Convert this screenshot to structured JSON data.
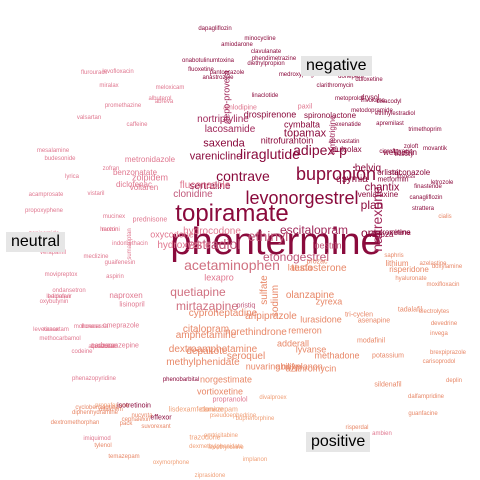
{
  "groups": {
    "negative": "negative",
    "neutral": "neutral",
    "positive": "positive"
  },
  "colors": {
    "negative_strong": "#8a0a3c",
    "negative_mid": "#a0285a",
    "neutral_strong": "#c0587a",
    "neutral_light": "#e07890",
    "positive_mid": "#e88868",
    "positive_light": "#f0a078"
  },
  "words": [
    {
      "t": "phentermine",
      "s": 38,
      "c": "#8a0a3c"
    },
    {
      "t": "topiramate",
      "s": 24,
      "c": "#8a0a3c"
    },
    {
      "t": "bupropion",
      "s": 18,
      "c": "#8a0a3c"
    },
    {
      "t": "levonorgestrel",
      "s": 18,
      "c": "#8a0a3c"
    },
    {
      "t": "contrave",
      "s": 14,
      "c": "#8a0a3c"
    },
    {
      "t": "liraglutide",
      "s": 14,
      "c": "#8a0a3c"
    },
    {
      "t": "adipex-p",
      "s": 14,
      "c": "#8a0a3c"
    },
    {
      "t": "ethinyl",
      "s": 14,
      "c": "#c0587a"
    },
    {
      "t": "estradiol",
      "s": 14,
      "c": "#c0587a"
    },
    {
      "t": "acetaminophen",
      "s": 14,
      "c": "#d07080"
    },
    {
      "t": "naltrexone",
      "s": 14,
      "c": "#a0285a",
      "v": true
    },
    {
      "t": "etonogestrel",
      "s": 12,
      "c": "#c0587a"
    },
    {
      "t": "quetiapine",
      "s": 12,
      "c": "#d07080"
    },
    {
      "t": "mirtazapine",
      "s": 12,
      "c": "#d07080"
    },
    {
      "t": "escitalopram",
      "s": 12,
      "c": "#a0285a"
    },
    {
      "t": "plan",
      "s": 12,
      "c": "#8a0a3c"
    },
    {
      "t": "one",
      "s": 12,
      "c": "#8a0a3c"
    },
    {
      "t": "varenicline",
      "s": 11,
      "c": "#8a0a3c"
    },
    {
      "t": "saxenda",
      "s": 11,
      "c": "#8a0a3c"
    },
    {
      "t": "chantix",
      "s": 11,
      "c": "#8a0a3c"
    },
    {
      "t": "topamax",
      "s": 11,
      "c": "#8a0a3c"
    },
    {
      "t": "belviq",
      "s": 10,
      "c": "#8a0a3c"
    },
    {
      "t": "qsymia",
      "s": 10,
      "c": "#8a0a3c"
    },
    {
      "t": "nortriptyline",
      "s": 10,
      "c": "#a0285a"
    },
    {
      "t": "lacosamide",
      "s": 10,
      "c": "#a0285a"
    },
    {
      "t": "hydrocodone",
      "s": 10,
      "c": "#e07890"
    },
    {
      "t": "sertraline",
      "s": 10,
      "c": "#8a0a3c"
    },
    {
      "t": "fluconazole",
      "s": 10,
      "c": "#e07890"
    },
    {
      "t": "clonidine",
      "s": 10,
      "c": "#c0587a"
    },
    {
      "t": "oxycodone",
      "s": 9,
      "c": "#e07890"
    },
    {
      "t": "hydroxyzine",
      "s": 10,
      "c": "#e07890"
    },
    {
      "t": "cyproheptadine",
      "s": 10,
      "c": "#e88868"
    },
    {
      "t": "citalopram",
      "s": 10,
      "c": "#e88868"
    },
    {
      "t": "aripiprazole",
      "s": 10,
      "c": "#e88868"
    },
    {
      "t": "amphetamine",
      "s": 10,
      "c": "#e88868"
    },
    {
      "t": "dextroamphetamine",
      "s": 10,
      "c": "#e88868"
    },
    {
      "t": "methylphenidate",
      "s": 10,
      "c": "#e88868"
    },
    {
      "t": "norgestimate",
      "s": 9,
      "c": "#e88868"
    },
    {
      "t": "norethindrone",
      "s": 10,
      "c": "#e88868"
    },
    {
      "t": "depakote",
      "s": 10,
      "c": "#e88868"
    },
    {
      "t": "seroquel",
      "s": 10,
      "c": "#e88868"
    },
    {
      "t": "loestrin",
      "s": 9,
      "c": "#c0587a"
    },
    {
      "t": "testosterone",
      "s": 10,
      "c": "#e88868"
    },
    {
      "t": "olanzapine",
      "s": 10,
      "c": "#e88868"
    },
    {
      "t": "lurasidone",
      "s": 9,
      "c": "#e88868"
    },
    {
      "t": "remeron",
      "s": 9,
      "c": "#e88868"
    },
    {
      "t": "lyvanse",
      "s": 9,
      "c": "#e88868"
    },
    {
      "t": "vortioxetine",
      "s": 9,
      "c": "#e88868"
    },
    {
      "t": "lexapro",
      "s": 9,
      "c": "#e07890"
    },
    {
      "t": "sulfate",
      "s": 10,
      "c": "#e88868",
      "v": true
    },
    {
      "t": "sodium",
      "s": 10,
      "c": "#e88868",
      "v": true
    },
    {
      "t": "latuda",
      "s": 9,
      "c": "#e88868"
    },
    {
      "t": "zyrexa",
      "s": 9,
      "c": "#e88868"
    },
    {
      "t": "abilify",
      "s": 9,
      "c": "#e88868"
    },
    {
      "t": "adderall",
      "s": 9,
      "c": "#e88868"
    },
    {
      "t": "methadone",
      "s": 9,
      "c": "#e88868"
    },
    {
      "t": "azithromycin",
      "s": 9,
      "c": "#e88868"
    },
    {
      "t": "nexplanon",
      "s": 9,
      "c": "#e88868"
    },
    {
      "t": "nuvaring",
      "s": 9,
      "c": "#e88868"
    },
    {
      "t": "zolpidem",
      "s": 9,
      "c": "#e07890"
    },
    {
      "t": "metronidazole",
      "s": 8,
      "c": "#e07890"
    },
    {
      "t": "benzonatate",
      "s": 8,
      "c": "#e07890"
    },
    {
      "t": "diclofenac",
      "s": 8,
      "c": "#e07890"
    },
    {
      "t": "voltaren",
      "s": 8,
      "c": "#e07890"
    },
    {
      "t": "naproxen",
      "s": 8,
      "c": "#e07890"
    },
    {
      "t": "amlodipine",
      "s": 7,
      "c": "#e07890"
    },
    {
      "t": "drospirenone",
      "s": 9,
      "c": "#8a0a3c"
    },
    {
      "t": "cymbalta",
      "s": 9,
      "c": "#8a0a3c"
    },
    {
      "t": "nitrofurantoin",
      "s": 9,
      "c": "#8a0a3c"
    },
    {
      "t": "dulcolax",
      "s": 8,
      "c": "#8a0a3c"
    },
    {
      "t": "orlistat",
      "s": 8,
      "c": "#8a0a3c"
    },
    {
      "t": "miconazole",
      "s": 8,
      "c": "#8a0a3c"
    },
    {
      "t": "wellbutrin",
      "s": 8,
      "c": "#8a0a3c"
    },
    {
      "t": "metformin",
      "s": 7,
      "c": "#8a0a3c"
    },
    {
      "t": "venlafaxine",
      "s": 8,
      "c": "#8a0a3c"
    },
    {
      "t": "victoza",
      "s": 8,
      "c": "#8a0a3c"
    },
    {
      "t": "depo-provera",
      "s": 9,
      "c": "#a0285a",
      "v": true
    },
    {
      "t": "spironolactone",
      "s": 8,
      "c": "#8a0a3c"
    },
    {
      "t": "paroxetine",
      "s": 8,
      "c": "#8a0a3c"
    },
    {
      "t": "lamotrigine",
      "s": 8,
      "c": "#a0285a",
      "v": true
    },
    {
      "t": "mirena",
      "s": 7,
      "c": "#8a0a3c"
    },
    {
      "t": "lithium",
      "s": 8,
      "c": "#e88868"
    },
    {
      "t": "risperidone",
      "s": 8,
      "c": "#e88868"
    },
    {
      "t": "tadalafil",
      "s": 7,
      "c": "#e88868"
    },
    {
      "t": "modafinil",
      "s": 7,
      "c": "#e88868"
    },
    {
      "t": "potassium",
      "s": 7,
      "c": "#e88868"
    },
    {
      "t": "sildenafil",
      "s": 7,
      "c": "#e88868"
    },
    {
      "t": "asenapine",
      "s": 7,
      "c": "#e88868"
    },
    {
      "t": "tri-cyclen",
      "s": 7,
      "c": "#e88868"
    },
    {
      "t": "prozac",
      "s": 7,
      "c": "#e88868"
    },
    {
      "t": "pristiq",
      "s": 7,
      "c": "#c0587a"
    },
    {
      "t": "paxil",
      "s": 7,
      "c": "#e07890"
    },
    {
      "t": "drysol",
      "s": 7,
      "c": "#8a0a3c"
    },
    {
      "t": "prednisone",
      "s": 7,
      "c": "#e07890"
    },
    {
      "t": "lisinopril",
      "s": 7,
      "c": "#e07890"
    },
    {
      "t": "omeprazole",
      "s": 7,
      "c": "#e07890"
    },
    {
      "t": "carbamazepine",
      "s": 7,
      "c": "#e07890"
    },
    {
      "t": "propranolol",
      "s": 7,
      "c": "#e07890"
    },
    {
      "t": "clonazepam",
      "s": 7,
      "c": "#f0a078"
    },
    {
      "t": "trazodone",
      "s": 7,
      "c": "#f0a078"
    },
    {
      "t": "lisdexamfetamine",
      "s": 7,
      "c": "#f0a078"
    },
    {
      "t": "levothyroxine",
      "s": 6,
      "c": "#f0a078"
    },
    {
      "t": "divalproex",
      "s": 6,
      "c": "#f0a078"
    },
    {
      "t": "oxymorphone",
      "s": 6,
      "c": "#f0a078"
    },
    {
      "t": "buprenorphine",
      "s": 6,
      "c": "#f0a078"
    },
    {
      "t": "ziprasidone",
      "s": 6,
      "c": "#f0a078"
    },
    {
      "t": "implanon",
      "s": 6,
      "c": "#f0a078"
    },
    {
      "t": "dexmethylphenidate",
      "s": 6,
      "c": "#f0a078"
    },
    {
      "t": "pseudoephedrine",
      "s": 6,
      "c": "#f0a078"
    },
    {
      "t": "emtricitabine",
      "s": 6,
      "c": "#f0a078"
    },
    {
      "t": "propafenone",
      "s": 6,
      "c": "#f0a078"
    },
    {
      "t": "diphenhydramine",
      "s": 6,
      "c": "#e88868"
    },
    {
      "t": "dextromethorphan",
      "s": 6,
      "c": "#e88868"
    },
    {
      "t": "cyclobenzaprine",
      "s": 6,
      "c": "#e88868"
    },
    {
      "t": "phenazopyridine",
      "s": 6,
      "c": "#e07890"
    },
    {
      "t": "imiquimod",
      "s": 6,
      "c": "#e07890"
    },
    {
      "t": "tylenol",
      "s": 6,
      "c": "#e88868"
    },
    {
      "t": "temazepam",
      "s": 6,
      "c": "#e88868"
    },
    {
      "t": "ditiiazem",
      "s": 6,
      "c": "#e88868"
    },
    {
      "t": "nucynta",
      "s": 6,
      "c": "#e88868"
    },
    {
      "t": "cephalexin",
      "s": 6,
      "c": "#e88868"
    },
    {
      "t": "pack",
      "s": 6,
      "c": "#e88868"
    },
    {
      "t": "suvorexant",
      "s": 6,
      "c": "#e88868"
    },
    {
      "t": "isotretinoin",
      "s": 7,
      "c": "#8a0a3c"
    },
    {
      "t": "effexor",
      "s": 7,
      "c": "#8a0a3c"
    },
    {
      "t": "phenobarbital",
      "s": 6,
      "c": "#8a0a3c"
    },
    {
      "t": "ciprofloxacin",
      "s": 6,
      "c": "#8a0a3c"
    },
    {
      "t": "trulicity",
      "s": 6,
      "c": "#8a0a3c"
    },
    {
      "t": "invokana",
      "s": 6,
      "c": "#8a0a3c"
    },
    {
      "t": "fluoxetine",
      "s": 6,
      "c": "#8a0a3c"
    },
    {
      "t": "anastrozole",
      "s": 6,
      "c": "#8a0a3c"
    },
    {
      "t": "onabotulinumtoxina",
      "s": 6,
      "c": "#8a0a3c"
    },
    {
      "t": "pantoprazole",
      "s": 6,
      "c": "#8a0a3c"
    },
    {
      "t": "amiodarone",
      "s": 6,
      "c": "#8a0a3c"
    },
    {
      "t": "dapagliflozin",
      "s": 6,
      "c": "#8a0a3c"
    },
    {
      "t": "minocycline",
      "s": 6,
      "c": "#8a0a3c"
    },
    {
      "t": "clavulanate",
      "s": 6,
      "c": "#8a0a3c"
    },
    {
      "t": "diethylpropion",
      "s": 6,
      "c": "#8a0a3c"
    },
    {
      "t": "phendimetrazine",
      "s": 6,
      "c": "#8a0a3c"
    },
    {
      "t": "medroxyprogesterone",
      "s": 6,
      "c": "#8a0a3c"
    },
    {
      "t": "clarithromycin",
      "s": 6,
      "c": "#8a0a3c"
    },
    {
      "t": "linaclotide",
      "s": 6,
      "c": "#8a0a3c"
    },
    {
      "t": "donepezil",
      "s": 6,
      "c": "#8a0a3c"
    },
    {
      "t": "duloxetine",
      "s": 6,
      "c": "#8a0a3c"
    },
    {
      "t": "prolia",
      "s": 6,
      "c": "#8a0a3c"
    },
    {
      "t": "metoprolol",
      "s": 6,
      "c": "#8a0a3c"
    },
    {
      "t": "exenatide",
      "s": 6,
      "c": "#8a0a3c"
    },
    {
      "t": "apremilast",
      "s": 6,
      "c": "#8a0a3c"
    },
    {
      "t": "trimethoprim",
      "s": 6,
      "c": "#8a0a3c"
    },
    {
      "t": "bisacodyl",
      "s": 6,
      "c": "#8a0a3c"
    },
    {
      "t": "ethinylestradiol",
      "s": 6,
      "c": "#8a0a3c"
    },
    {
      "t": "metodopramide",
      "s": 6,
      "c": "#8a0a3c"
    },
    {
      "t": "atorvastatin",
      "s": 6,
      "c": "#8a0a3c"
    },
    {
      "t": "zoloft",
      "s": 6,
      "c": "#8a0a3c"
    },
    {
      "t": "movantik",
      "s": 6,
      "c": "#8a0a3c"
    },
    {
      "t": "linzess",
      "s": 6,
      "c": "#8a0a3c"
    },
    {
      "t": "finasteride",
      "s": 6,
      "c": "#8a0a3c"
    },
    {
      "t": "canagliflozin",
      "s": 6,
      "c": "#8a0a3c"
    },
    {
      "t": "letrozole",
      "s": 6,
      "c": "#8a0a3c"
    },
    {
      "t": "strattera",
      "s": 6,
      "c": "#8a0a3c"
    },
    {
      "t": "cialis",
      "s": 6,
      "c": "#e88868"
    },
    {
      "t": "saphris",
      "s": 6,
      "c": "#e88868"
    },
    {
      "t": "azelastine",
      "s": 6,
      "c": "#e88868"
    },
    {
      "t": "doxylamine",
      "s": 6,
      "c": "#e88868"
    },
    {
      "t": "hyaluronate",
      "s": 6,
      "c": "#e88868"
    },
    {
      "t": "moxifloxacin",
      "s": 6,
      "c": "#e88868"
    },
    {
      "t": "electrolytes",
      "s": 6,
      "c": "#e88868"
    },
    {
      "t": "devedrine",
      "s": 6,
      "c": "#e88868"
    },
    {
      "t": "invega",
      "s": 6,
      "c": "#e88868"
    },
    {
      "t": "brexpiprazole",
      "s": 6,
      "c": "#e88868"
    },
    {
      "t": "carisoprodol",
      "s": 6,
      "c": "#e88868"
    },
    {
      "t": "deplin",
      "s": 6,
      "c": "#e88868"
    },
    {
      "t": "dalfampridine",
      "s": 6,
      "c": "#e88868"
    },
    {
      "t": "guanfacine",
      "s": 6,
      "c": "#e88868"
    },
    {
      "t": "risperdal",
      "s": 6,
      "c": "#e88868"
    },
    {
      "t": "doxepin",
      "s": 6,
      "c": "#e88868"
    },
    {
      "t": "ambien",
      "s": 6,
      "c": "#e07890"
    },
    {
      "t": "acamprosate",
      "s": 6,
      "c": "#e07890"
    },
    {
      "t": "propoxyphene",
      "s": 6,
      "c": "#e07890"
    },
    {
      "t": "zonisamide",
      "s": 6,
      "c": "#e07890"
    },
    {
      "t": "verapamil",
      "s": 6,
      "c": "#e07890"
    },
    {
      "t": "movipreptox",
      "s": 6,
      "c": "#e07890"
    },
    {
      "t": "ondansetron",
      "s": 6,
      "c": "#e07890"
    },
    {
      "t": "oxybutynin",
      "s": 6,
      "c": "#e07890"
    },
    {
      "t": "methocarbamol",
      "s": 6,
      "c": "#e07890"
    },
    {
      "t": "budesonide",
      "s": 6,
      "c": "#e07890"
    },
    {
      "t": "mesalamine",
      "s": 6,
      "c": "#e07890"
    },
    {
      "t": "flurouracil",
      "s": 6,
      "c": "#e07890"
    },
    {
      "t": "miralax",
      "s": 6,
      "c": "#e07890"
    },
    {
      "t": "levofloxacin",
      "s": 6,
      "c": "#e07890"
    },
    {
      "t": "promethazine",
      "s": 6,
      "c": "#e07890"
    },
    {
      "t": "albuterol",
      "s": 6,
      "c": "#e07890"
    },
    {
      "t": "meloxicam",
      "s": 6,
      "c": "#e07890"
    },
    {
      "t": "valsartan",
      "s": 6,
      "c": "#e07890"
    },
    {
      "t": "abreva",
      "s": 6,
      "c": "#e07890"
    },
    {
      "t": "caffeine",
      "s": 6,
      "c": "#e07890"
    },
    {
      "t": "lyrica",
      "s": 6,
      "c": "#e07890"
    },
    {
      "t": "mucinex",
      "s": 6,
      "c": "#e07890"
    },
    {
      "t": "zofran",
      "s": 6,
      "c": "#e07890"
    },
    {
      "t": "vistaril",
      "s": 6,
      "c": "#e07890"
    },
    {
      "t": "ledipasvir",
      "s": 6,
      "c": "#e07890"
    },
    {
      "t": "monoenessa",
      "s": 6,
      "c": "#e07890"
    },
    {
      "t": "levetiracetam",
      "s": 6,
      "c": "#e07890"
    },
    {
      "t": "harvoni",
      "s": 6,
      "c": "#e07890"
    },
    {
      "t": "indomethacin",
      "s": 6,
      "c": "#e07890"
    },
    {
      "t": "alprazolam",
      "s": 6,
      "c": "#e07890"
    },
    {
      "t": "meclizine",
      "s": 6,
      "c": "#e07890"
    },
    {
      "t": "guaifenesin",
      "s": 6,
      "c": "#e07890"
    },
    {
      "t": "aspirin",
      "s": 6,
      "c": "#e07890"
    },
    {
      "t": "codeine",
      "s": 6,
      "c": "#e07890"
    },
    {
      "t": "baclofen",
      "s": 6,
      "c": "#e07890"
    },
    {
      "t": "flonase",
      "s": 6,
      "c": "#e07890"
    },
    {
      "t": "xanax",
      "s": 6,
      "c": "#e07890"
    },
    {
      "t": "motrin",
      "s": 6,
      "c": "#e07890"
    },
    {
      "t": "sumatriptan",
      "s": 6,
      "c": "#e07890",
      "v": true
    },
    {
      "t": "butalbital",
      "s": 6,
      "c": "#e07890"
    }
  ]
}
